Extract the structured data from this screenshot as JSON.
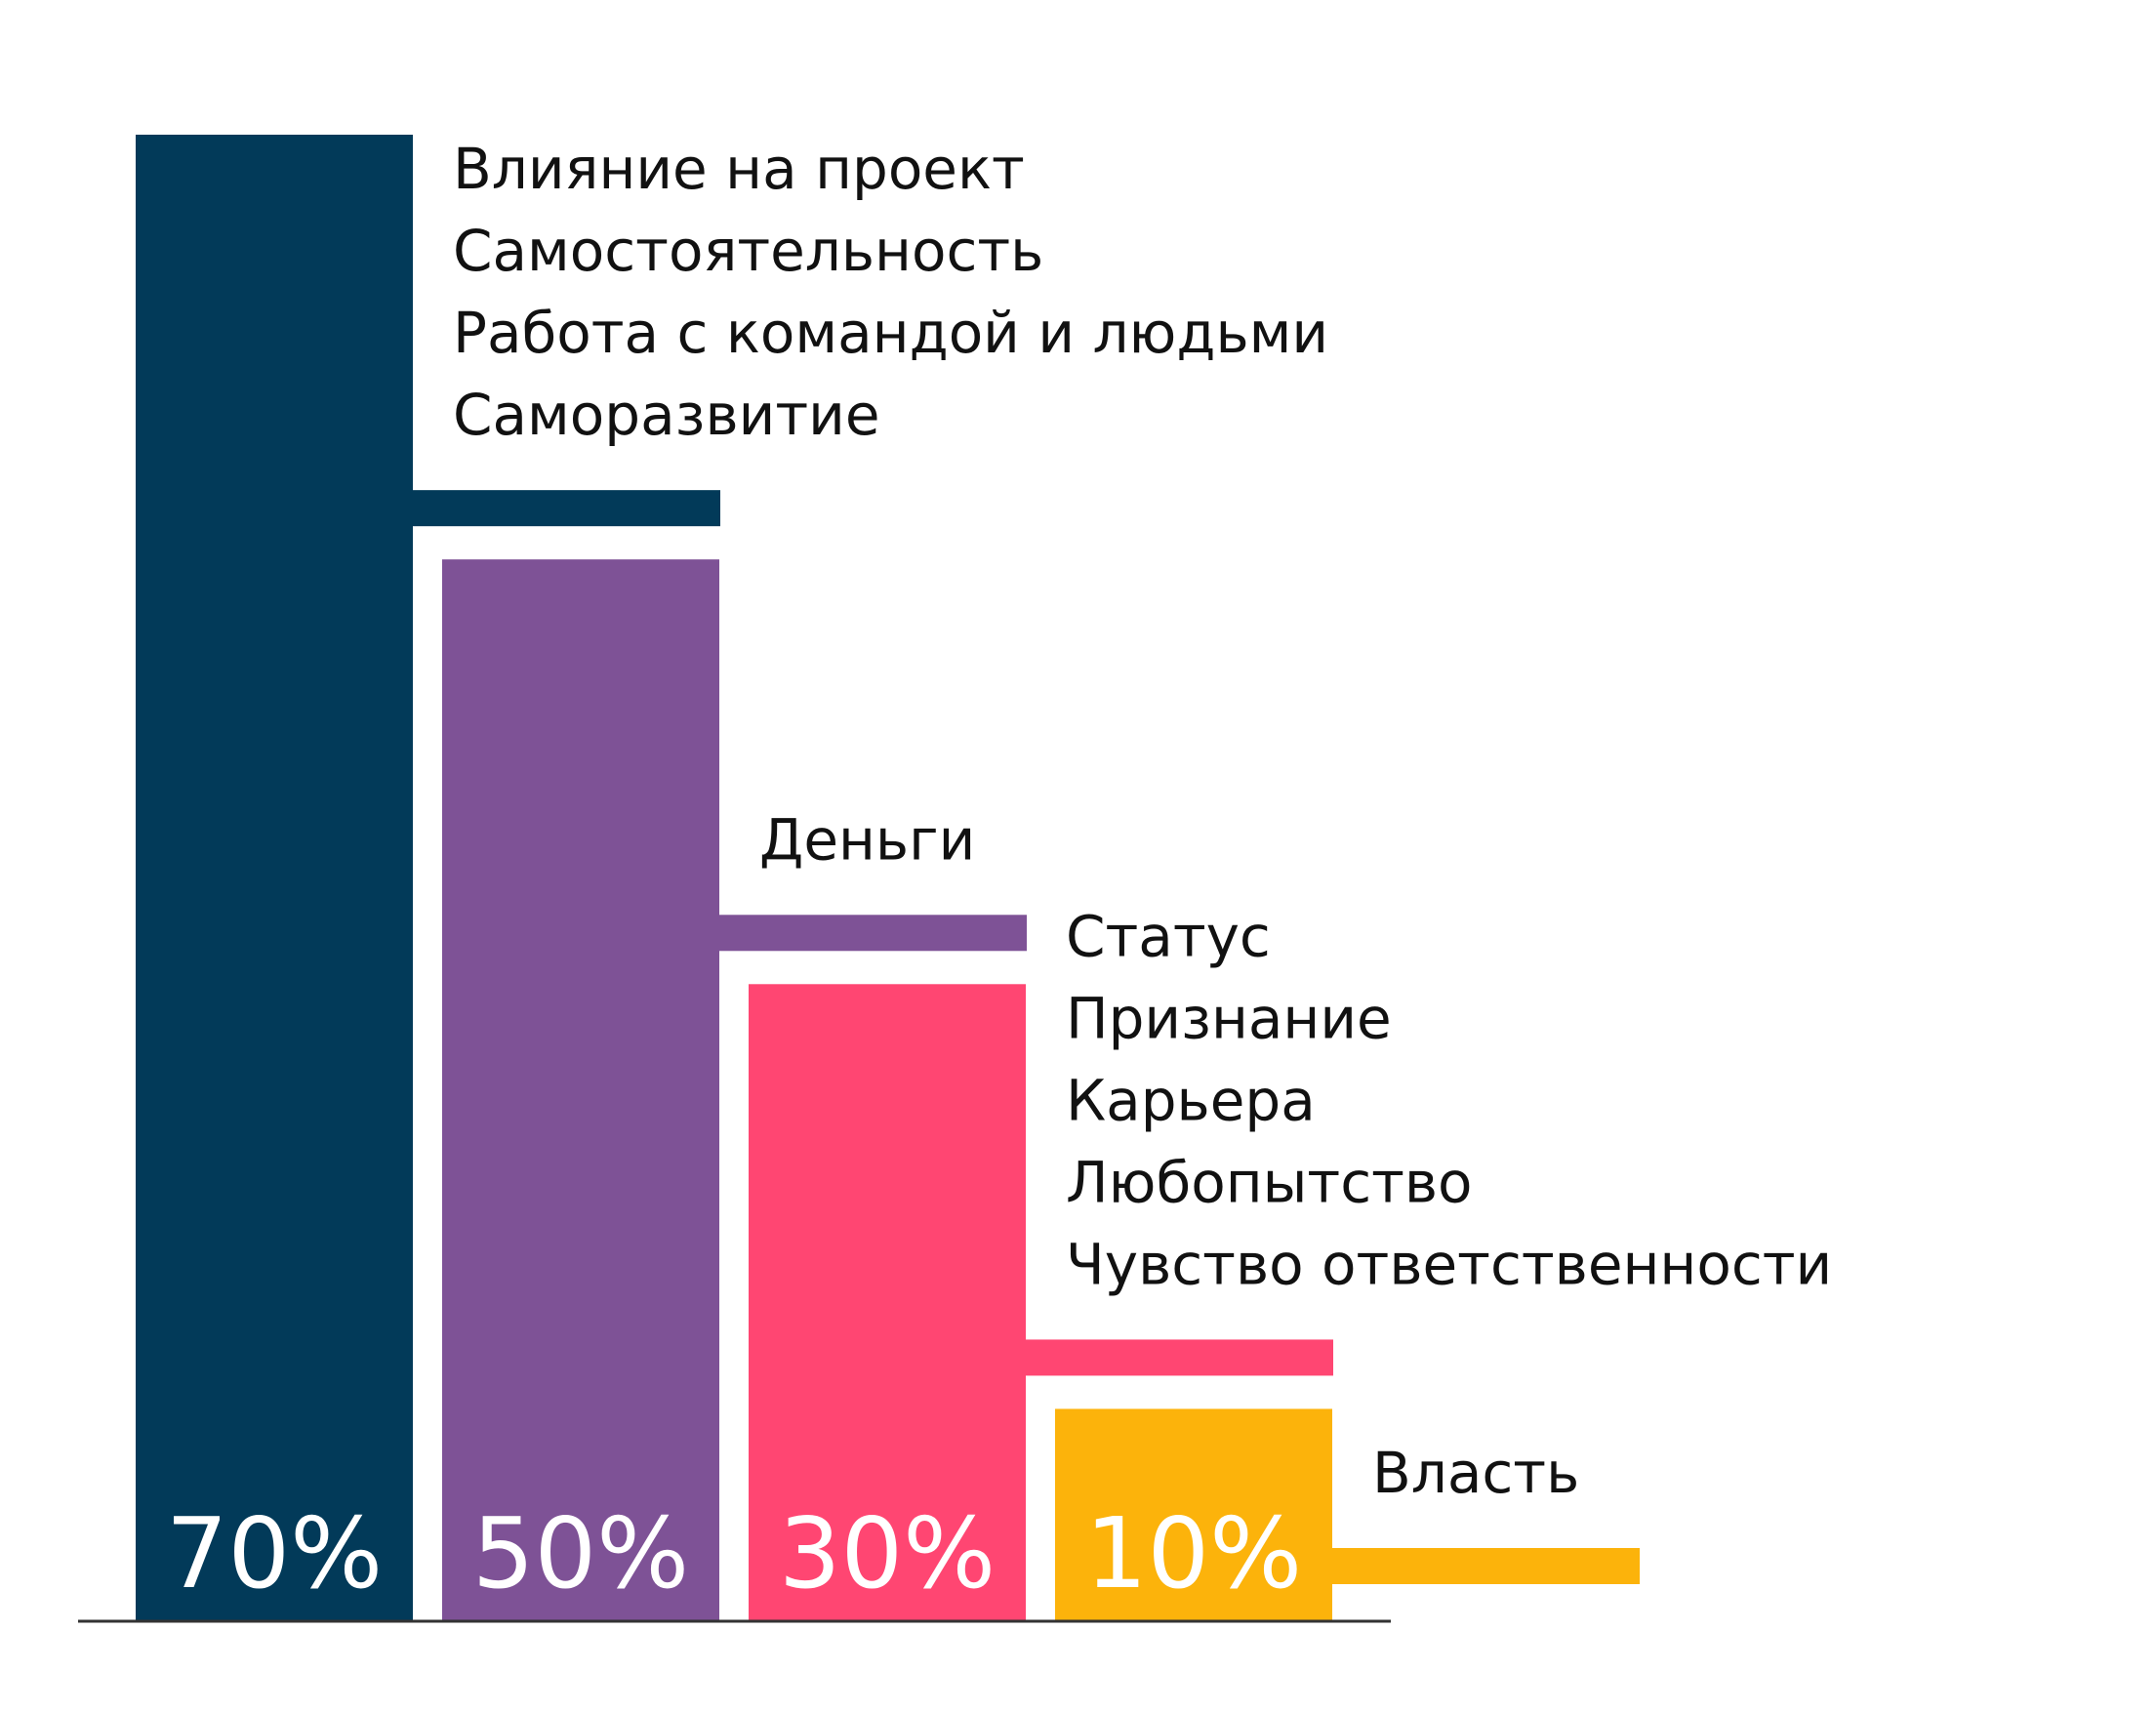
{
  "chart_data": {
    "type": "bar",
    "title": "",
    "xlabel": "",
    "ylabel": "",
    "ylim": [
      0,
      70
    ],
    "grid": false,
    "legend": "none",
    "bars": [
      {
        "value": 70,
        "value_label": "70%",
        "color": "#023a59",
        "labels": [
          "Влияние на проект",
          "Самостоятельность",
          "Работа с командой и людьми",
          "Саморазвитие"
        ]
      },
      {
        "value": 50,
        "value_label": "50%",
        "color": "#7e5296",
        "labels": [
          "Деньги"
        ]
      },
      {
        "value": 30,
        "value_label": "30%",
        "color": "#ff4672",
        "labels": [
          "Статус",
          "Признание",
          "Карьера",
          "Любопытство",
          "Чувство ответственности"
        ]
      },
      {
        "value": 10,
        "value_label": "10%",
        "color": "#fcb30b",
        "labels": [
          "Власть"
        ]
      }
    ]
  }
}
